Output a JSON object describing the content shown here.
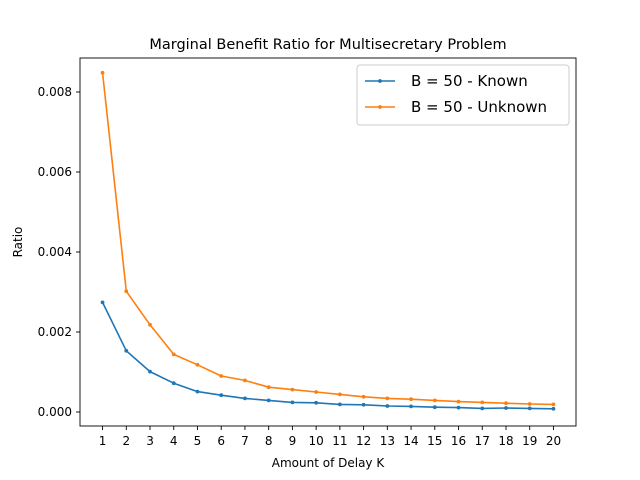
{
  "chart_data": {
    "type": "line",
    "title": "Marginal Benefit Ratio for Multisecretary Problem",
    "xlabel": "Amount of Delay K",
    "ylabel": "Ratio",
    "x": [
      1,
      2,
      3,
      4,
      5,
      6,
      7,
      8,
      9,
      10,
      11,
      12,
      13,
      14,
      15,
      16,
      17,
      18,
      19,
      20
    ],
    "x_ticks": [
      "1",
      "2",
      "3",
      "4",
      "5",
      "6",
      "7",
      "8",
      "9",
      "10",
      "11",
      "12",
      "13",
      "14",
      "15",
      "16",
      "17",
      "18",
      "19",
      "20"
    ],
    "y_ticks": [
      {
        "value": 0.0,
        "label": "0.000"
      },
      {
        "value": 0.002,
        "label": "0.002"
      },
      {
        "value": 0.004,
        "label": "0.004"
      },
      {
        "value": 0.006,
        "label": "0.006"
      },
      {
        "value": 0.008,
        "label": "0.008"
      }
    ],
    "xlim": [
      0.05,
      20.95
    ],
    "ylim": [
      -0.00035,
      0.00885
    ],
    "grid": false,
    "legend_position": "upper right",
    "series": [
      {
        "name": "B = 50 - Known",
        "color": "#1f77b4",
        "values": [
          0.00274,
          0.00153,
          0.00101,
          0.00072,
          0.00051,
          0.00042,
          0.00034,
          0.00029,
          0.00024,
          0.00023,
          0.00019,
          0.00018,
          0.00015,
          0.00014,
          0.00012,
          0.00011,
          9e-05,
          0.0001,
          9e-05,
          8e-05
        ]
      },
      {
        "name": "B = 50 - Unknown",
        "color": "#ff7f0e",
        "values": [
          0.00848,
          0.00302,
          0.00218,
          0.00144,
          0.00118,
          0.0009,
          0.00079,
          0.00062,
          0.00056,
          0.0005,
          0.00044,
          0.00038,
          0.00034,
          0.00032,
          0.00029,
          0.00026,
          0.00024,
          0.00022,
          0.0002,
          0.00019
        ]
      }
    ]
  }
}
